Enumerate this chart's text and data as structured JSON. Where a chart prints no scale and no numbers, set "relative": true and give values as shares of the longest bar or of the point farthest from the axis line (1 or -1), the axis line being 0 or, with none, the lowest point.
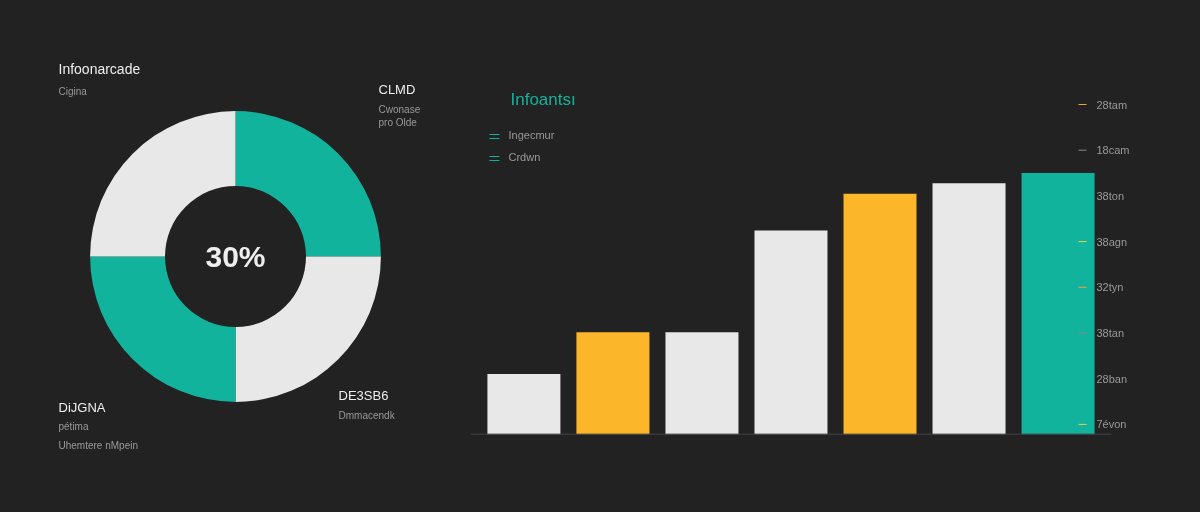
{
  "chart_data": [
    {
      "type": "donut",
      "title": "Infoonarcade",
      "categories": [
        null,
        null,
        null,
        null
      ],
      "values": [
        25,
        25,
        25,
        25
      ],
      "colors": [
        "#12b39c",
        "#e8e8e8",
        "#12b39c",
        "#e8e8e8"
      ],
      "annotations": [
        "30%",
        "Cigina",
        "CLMD",
        "Cwonase",
        "pro Olde",
        "DE3SB6",
        "Dmmacendk",
        "DiJGNA",
        "pétima",
        "Uhemtere nMpein"
      ]
    },
    {
      "type": "bar",
      "relative": true,
      "title": "Infoantsı",
      "categories": [
        null,
        null,
        null,
        null,
        null,
        null,
        null
      ],
      "values": [
        0.23,
        0.39,
        0.39,
        0.78,
        0.92,
        0.96,
        1
      ],
      "colors": [
        "#e8e8e8",
        "#fbb62a",
        "#e8e8e8",
        "#e8e8e8",
        "#fbb62a",
        "#e8e8e8",
        "#12b39c"
      ],
      "annotations": [
        "Ingecmur",
        "Crdwn",
        "28tam",
        "18cam",
        "38ton",
        "38agn",
        "32tyn",
        "38tan",
        "28ban",
        "7évon"
      ]
    }
  ]
}
